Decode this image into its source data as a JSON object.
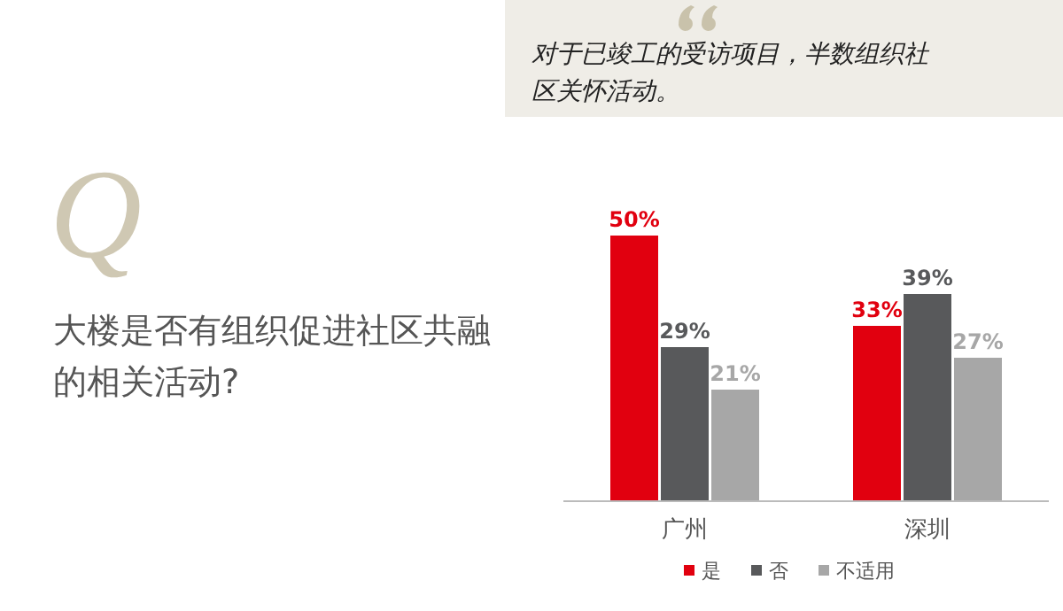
{
  "chart_data": {
    "type": "bar",
    "title": "大楼是否有组织促进社区共融的相关活动?",
    "categories": [
      "广州",
      "深圳"
    ],
    "series": [
      {
        "name": "是",
        "color": "#e1000f",
        "values": [
          50,
          33
        ],
        "value_labels": [
          "50%",
          "33%"
        ]
      },
      {
        "name": "否",
        "color": "#58595b",
        "values": [
          29,
          39
        ],
        "value_labels": [
          "29%",
          "39%"
        ]
      },
      {
        "name": "不适用",
        "color": "#a7a7a7",
        "values": [
          21,
          27
        ],
        "value_labels": [
          "21%",
          "27%"
        ]
      }
    ],
    "legend": "bottom",
    "annotations": [
      "Q",
      "对于已竣工的受访项目，半数组织社区关怀活动。"
    ]
  }
}
